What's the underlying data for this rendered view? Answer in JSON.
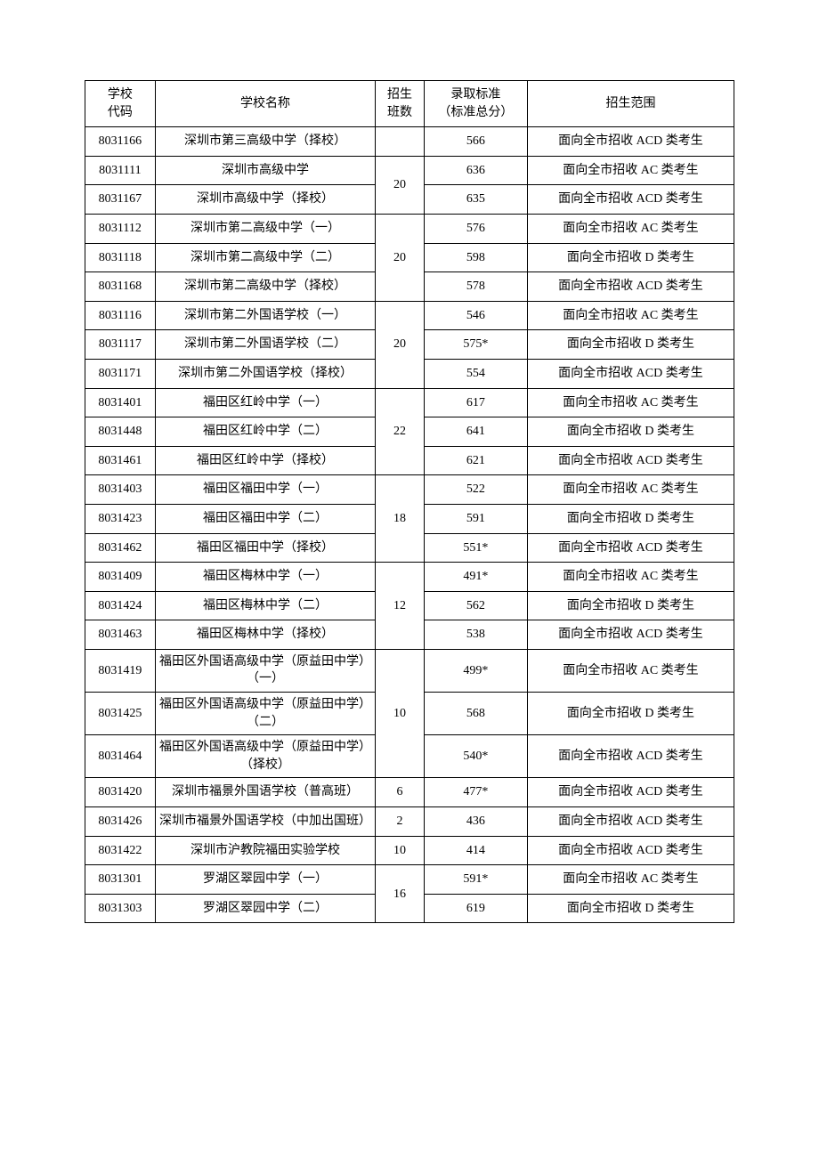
{
  "headers": {
    "code": "学校\n代码",
    "name": "学校名称",
    "classes": "招生\n班数",
    "score": "录取标准\n（标准总分）",
    "scope": "招生范围"
  },
  "columns": {
    "widths": {
      "code": 72,
      "name": 226,
      "classes": 50,
      "score": 106,
      "scope": 212
    }
  },
  "styling": {
    "font_family": "SimSun",
    "font_size": 14,
    "border_color": "#000000",
    "background_color": "#ffffff",
    "text_color": "#000000",
    "page_padding": 90
  },
  "groups": [
    {
      "classes": "",
      "rows": [
        {
          "code": "8031166",
          "name": "深圳市第三高级中学（择校）",
          "score": "566",
          "scope": "面向全市招收 ACD 类考生"
        }
      ]
    },
    {
      "classes": "20",
      "rows": [
        {
          "code": "8031111",
          "name": "深圳市高级中学",
          "score": "636",
          "scope": "面向全市招收 AC 类考生"
        },
        {
          "code": "8031167",
          "name": "深圳市高级中学（择校）",
          "score": "635",
          "scope": "面向全市招收 ACD 类考生"
        }
      ]
    },
    {
      "classes": "20",
      "rows": [
        {
          "code": "8031112",
          "name": "深圳市第二高级中学（一）",
          "score": "576",
          "scope": "面向全市招收 AC 类考生"
        },
        {
          "code": "8031118",
          "name": "深圳市第二高级中学（二）",
          "score": "598",
          "scope": "面向全市招收 D 类考生"
        },
        {
          "code": "8031168",
          "name": "深圳市第二高级中学（择校）",
          "score": "578",
          "scope": "面向全市招收 ACD 类考生"
        }
      ]
    },
    {
      "classes": "20",
      "rows": [
        {
          "code": "8031116",
          "name": "深圳市第二外国语学校（一）",
          "score": "546",
          "scope": "面向全市招收 AC 类考生"
        },
        {
          "code": "8031117",
          "name": "深圳市第二外国语学校（二）",
          "score": "575*",
          "scope": "面向全市招收 D 类考生"
        },
        {
          "code": "8031171",
          "name": "深圳市第二外国语学校（择校）",
          "score": "554",
          "scope": "面向全市招收 ACD 类考生"
        }
      ]
    },
    {
      "classes": "22",
      "rows": [
        {
          "code": "8031401",
          "name": "福田区红岭中学（一）",
          "score": "617",
          "scope": "面向全市招收 AC 类考生"
        },
        {
          "code": "8031448",
          "name": "福田区红岭中学（二）",
          "score": "641",
          "scope": "面向全市招收 D 类考生"
        },
        {
          "code": "8031461",
          "name": "福田区红岭中学（择校）",
          "score": "621",
          "scope": "面向全市招收 ACD 类考生"
        }
      ]
    },
    {
      "classes": "18",
      "rows": [
        {
          "code": "8031403",
          "name": "福田区福田中学（一）",
          "score": "522",
          "scope": "面向全市招收 AC 类考生"
        },
        {
          "code": "8031423",
          "name": "福田区福田中学（二）",
          "score": "591",
          "scope": "面向全市招收 D 类考生"
        },
        {
          "code": "8031462",
          "name": "福田区福田中学（择校）",
          "score": "551*",
          "scope": "面向全市招收 ACD 类考生"
        }
      ]
    },
    {
      "classes": "12",
      "rows": [
        {
          "code": "8031409",
          "name": "福田区梅林中学（一）",
          "score": "491*",
          "scope": "面向全市招收 AC 类考生"
        },
        {
          "code": "8031424",
          "name": "福田区梅林中学（二）",
          "score": "562",
          "scope": "面向全市招收 D 类考生"
        },
        {
          "code": "8031463",
          "name": "福田区梅林中学（择校）",
          "score": "538",
          "scope": "面向全市招收 ACD 类考生"
        }
      ]
    },
    {
      "classes": "10",
      "rows": [
        {
          "code": "8031419",
          "name": "福田区外国语高级中学（原益田中学）（一）",
          "score": "499*",
          "scope": "面向全市招收 AC 类考生",
          "twoline": true
        },
        {
          "code": "8031425",
          "name": "福田区外国语高级中学（原益田中学）（二）",
          "score": "568",
          "scope": "面向全市招收 D 类考生",
          "twoline": true
        },
        {
          "code": "8031464",
          "name": "福田区外国语高级中学（原益田中学）（择校）",
          "score": "540*",
          "scope": "面向全市招收 ACD 类考生",
          "twoline": true
        }
      ]
    },
    {
      "classes": "6",
      "rows": [
        {
          "code": "8031420",
          "name": "深圳市福景外国语学校（普高班）",
          "score": "477*",
          "scope": "面向全市招收 ACD 类考生",
          "twoline": true
        }
      ]
    },
    {
      "classes": "2",
      "rows": [
        {
          "code": "8031426",
          "name": "深圳市福景外国语学校（中加出国班）",
          "score": "436",
          "scope": "面向全市招收 ACD 类考生",
          "twoline": true
        }
      ]
    },
    {
      "classes": "10",
      "rows": [
        {
          "code": "8031422",
          "name": "深圳市沪教院福田实验学校",
          "score": "414",
          "scope": "面向全市招收 ACD 类考生"
        }
      ]
    },
    {
      "classes": "16",
      "rows": [
        {
          "code": "8031301",
          "name": "罗湖区翠园中学（一）",
          "score": "591*",
          "scope": "面向全市招收 AC 类考生"
        },
        {
          "code": "8031303",
          "name": "罗湖区翠园中学（二）",
          "score": "619",
          "scope": "面向全市招收 D 类考生"
        }
      ]
    }
  ]
}
